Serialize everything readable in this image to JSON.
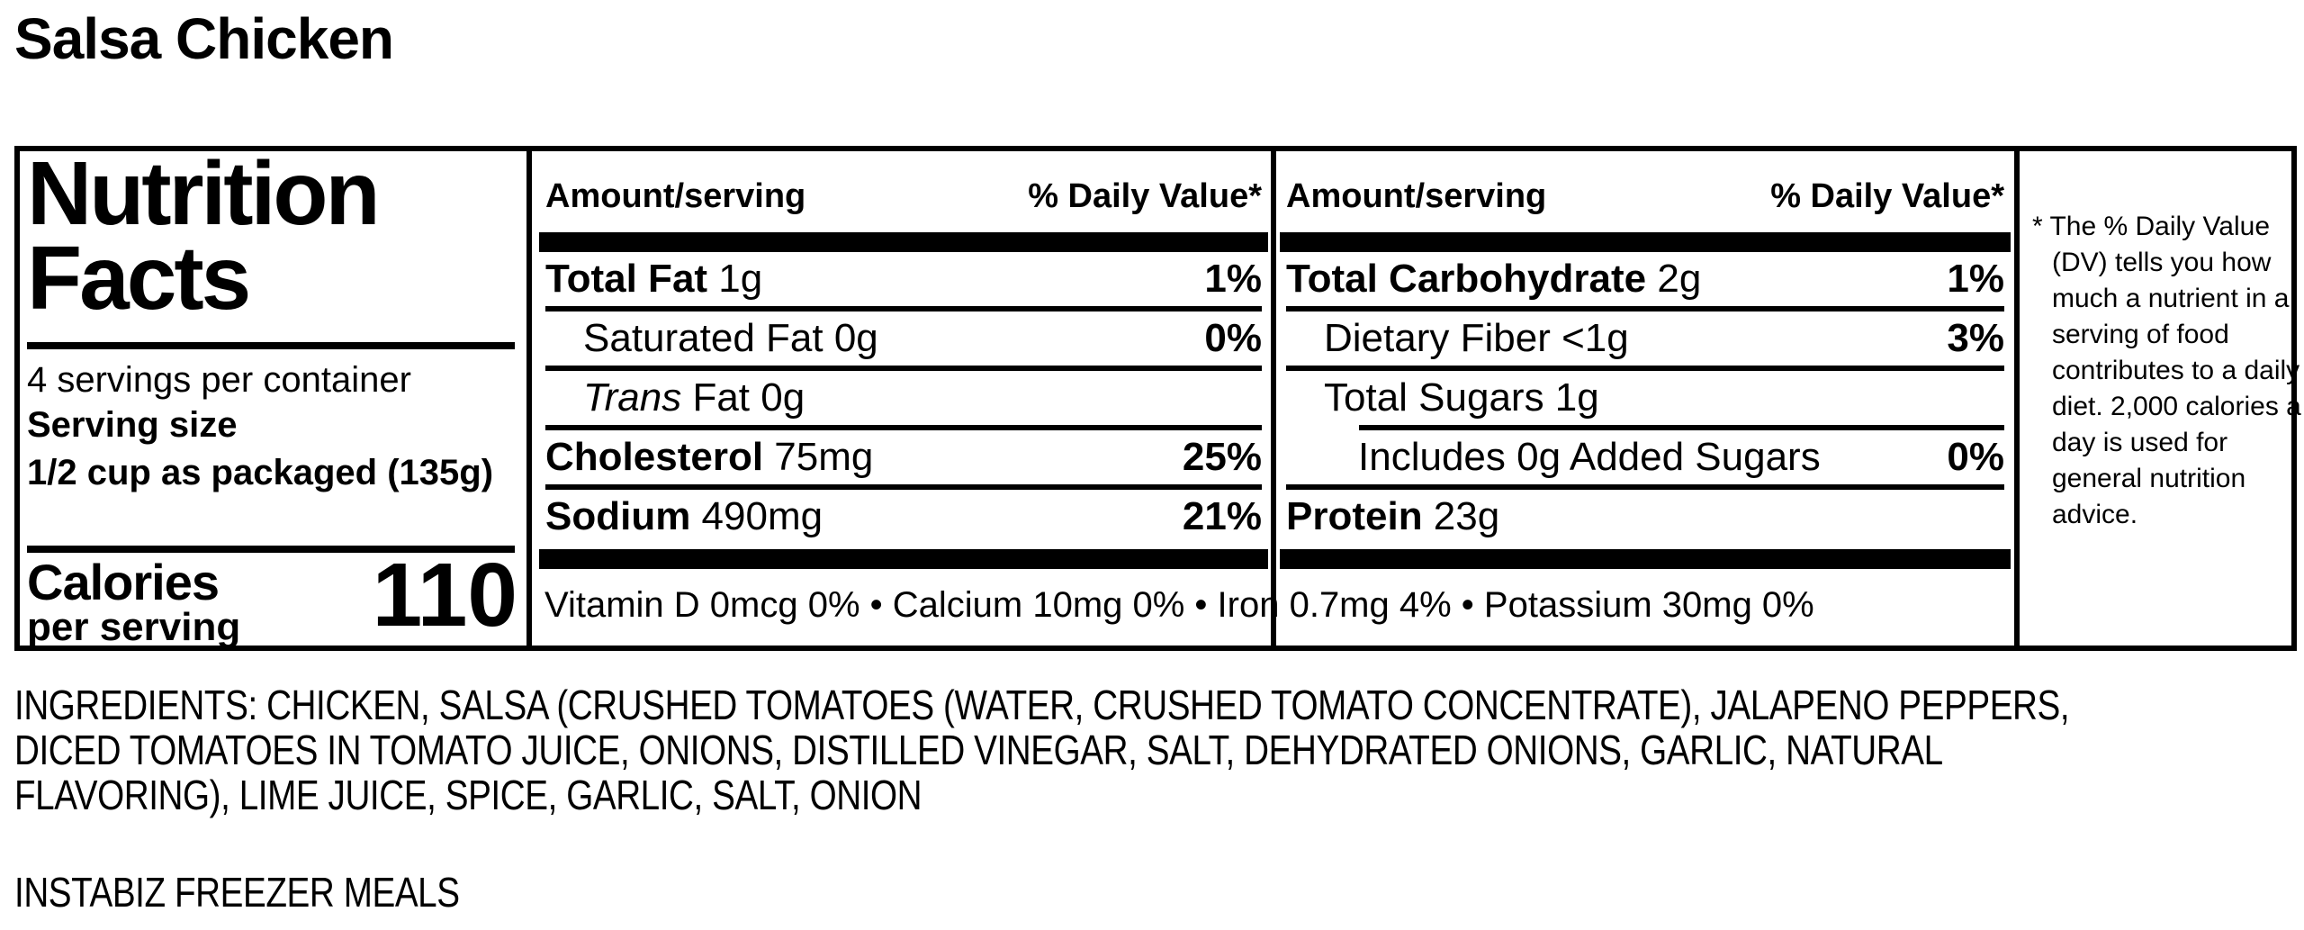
{
  "page": {
    "title": "Salsa Chicken",
    "brand_line": "INSTABIZ FREEZER MEALS"
  },
  "nutrition_facts": {
    "heading": "Nutrition Facts",
    "servings_per_container": "4 servings per container",
    "serving_size_label": "Serving size",
    "serving_size_value": "1/2 cup as packaged (135g)",
    "calories_label": "Calories",
    "calories_sublabel": "per serving",
    "calories_value": "110",
    "column_header_amount": "Amount/serving",
    "column_header_dv": "% Daily Value*",
    "left_column_rows": [
      {
        "name": "Total Fat",
        "amount": "1g",
        "dv": "1%",
        "name_bold": true,
        "name_italic": false,
        "indent": 0,
        "rule_after": "full"
      },
      {
        "name": "Saturated Fat",
        "amount": "0g",
        "dv": "0%",
        "name_bold": false,
        "name_italic": false,
        "indent": 1,
        "rule_after": "full"
      },
      {
        "name": "Trans",
        "amount": "Fat 0g",
        "dv": "",
        "name_bold": false,
        "name_italic": true,
        "indent": 1,
        "rule_after": "full"
      },
      {
        "name": "Cholesterol",
        "amount": "75mg",
        "dv": "25%",
        "name_bold": true,
        "name_italic": false,
        "indent": 0,
        "rule_after": "full"
      },
      {
        "name": "Sodium",
        "amount": "490mg",
        "dv": "21%",
        "name_bold": true,
        "name_italic": false,
        "indent": 0,
        "rule_after": "none"
      }
    ],
    "right_column_rows": [
      {
        "name": "Total Carbohydrate",
        "amount": "2g",
        "dv": "1%",
        "name_bold": true,
        "name_italic": false,
        "indent": 0,
        "rule_after": "full"
      },
      {
        "name": "Dietary Fiber",
        "amount": "<1g",
        "dv": "3%",
        "name_bold": false,
        "name_italic": false,
        "indent": 1,
        "rule_after": "full"
      },
      {
        "name": "Total Sugars",
        "amount": "1g",
        "dv": "",
        "name_bold": false,
        "name_italic": false,
        "indent": 1,
        "rule_after": "indented"
      },
      {
        "name": "Includes 0g Added Sugars",
        "amount": "",
        "dv": "0%",
        "name_bold": false,
        "name_italic": false,
        "indent": 2,
        "rule_after": "full"
      },
      {
        "name": "Protein",
        "amount": "23g",
        "dv": "",
        "name_bold": true,
        "name_italic": false,
        "indent": 0,
        "rule_after": "none"
      }
    ],
    "micronutrients": "Vitamin D 0mcg 0% • Calcium 10mg 0% • Iron 0.7mg 4% • Potassium 30mg 0%",
    "footnote": "* The % Daily Value (DV) tells you how much a nutrient in a serving of food contributes to a daily diet. 2,000 calories a day is used for general nutrition advice."
  },
  "ingredients": {
    "lines": [
      "INGREDIENTS: CHICKEN, SALSA (CRUSHED TOMATOES (WATER, CRUSHED TOMATO CONCENTRATE), JALAPENO PEPPERS,",
      "DICED TOMATOES IN TOMATO JUICE, ONIONS, DISTILLED VINEGAR, SALT, DEHYDRATED ONIONS, GARLIC, NATURAL",
      "FLAVORING), LIME JUICE, SPICE, GARLIC, SALT, ONION"
    ]
  }
}
